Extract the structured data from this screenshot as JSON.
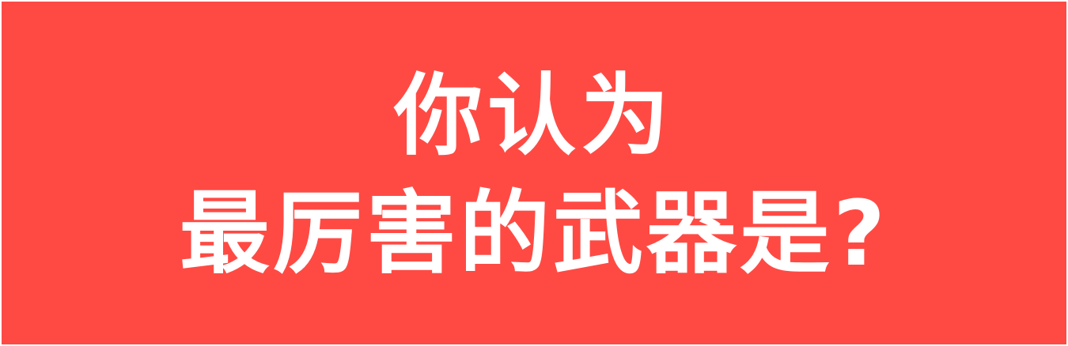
{
  "banner": {
    "line1": "你认为",
    "line2": "最厉害的武器是?",
    "background_color": "#ff4a44",
    "text_color": "#ffffff"
  }
}
